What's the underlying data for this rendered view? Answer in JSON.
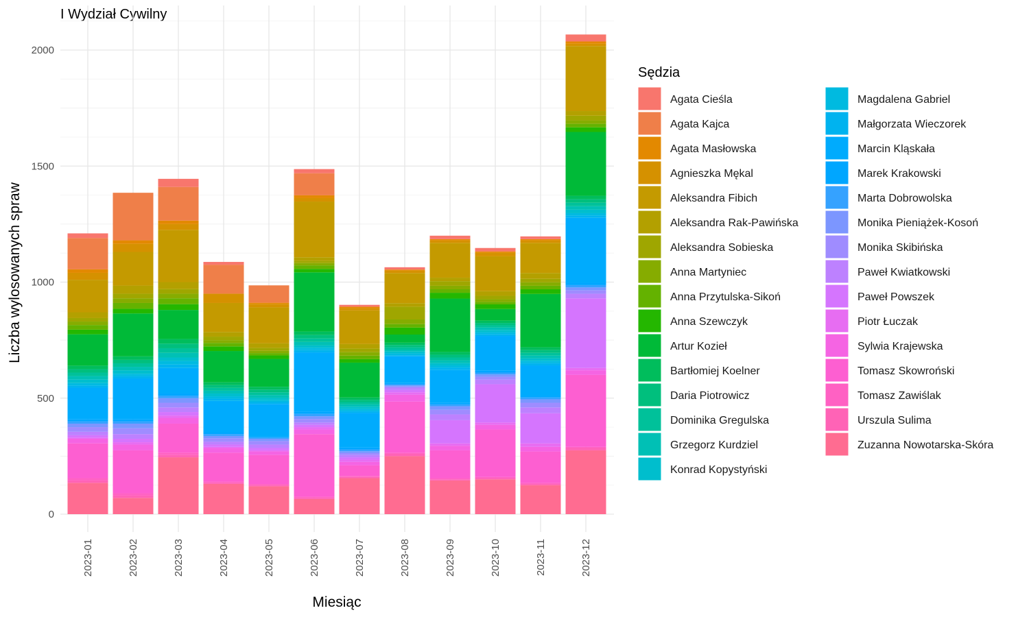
{
  "chart_data": {
    "type": "bar",
    "stacked": true,
    "title": "I Wydział Cywilny",
    "xlabel": "Miesiąc",
    "ylabel": "Liczba wylosowanych spraw",
    "ylim": [
      0,
      2100
    ],
    "yticks": [
      0,
      500,
      1000,
      1500,
      2000
    ],
    "grid": true,
    "legend_title": "Sędzia",
    "legend_position": "right",
    "categories": [
      "2023-01",
      "2023-02",
      "2023-03",
      "2023-04",
      "2023-05",
      "2023-06",
      "2023-07",
      "2023-08",
      "2023-09",
      "2023-10",
      "2023-11",
      "2023-12"
    ],
    "series": [
      {
        "name": "Agata Cieśla",
        "color": "#F8766D",
        "values": [
          20,
          0,
          35,
          12,
          0,
          18,
          8,
          10,
          15,
          15,
          12,
          30
        ]
      },
      {
        "name": "Agata Kajca",
        "color": "#EF7F49",
        "values": [
          135,
          205,
          145,
          125,
          75,
          95,
          0,
          0,
          0,
          0,
          0,
          0
        ]
      },
      {
        "name": "Agata Masłowska",
        "color": "#E38900",
        "values": [
          15,
          15,
          15,
          0,
          5,
          12,
          6,
          5,
          6,
          6,
          6,
          10
        ]
      },
      {
        "name": "Agnieszka Mękal",
        "color": "#D59100",
        "values": [
          30,
          35,
          25,
          40,
          15,
          15,
          10,
          10,
          10,
          15,
          10,
          10
        ]
      },
      {
        "name": "Aleksandra Fibich",
        "color": "#C49A00",
        "values": [
          140,
          145,
          225,
          125,
          155,
          240,
          145,
          130,
          150,
          150,
          130,
          280
        ]
      },
      {
        "name": "Aleksandra Rak-Pawińska",
        "color": "#B3A000",
        "values": [
          25,
          35,
          30,
          20,
          20,
          15,
          20,
          15,
          15,
          20,
          25,
          20
        ]
      },
      {
        "name": "Aleksandra Sobieska",
        "color": "#9FA600",
        "values": [
          15,
          20,
          20,
          15,
          12,
          10,
          15,
          55,
          20,
          15,
          15,
          20
        ]
      },
      {
        "name": "Anna Martyniec",
        "color": "#86AC00",
        "values": [
          15,
          20,
          20,
          12,
          10,
          10,
          15,
          20,
          15,
          12,
          15,
          15
        ]
      },
      {
        "name": "Anna Przytulska-Sikoń",
        "color": "#64B200",
        "values": [
          20,
          25,
          25,
          15,
          10,
          15,
          15,
          15,
          15,
          10,
          15,
          15
        ]
      },
      {
        "name": "Anna Szewczyk",
        "color": "#24B700",
        "values": [
          20,
          20,
          25,
          20,
          15,
          15,
          15,
          30,
          25,
          20,
          20,
          20
        ]
      },
      {
        "name": "Artur Kozieł",
        "color": "#00BA38",
        "values": [
          135,
          185,
          125,
          135,
          120,
          255,
          150,
          35,
          230,
          50,
          230,
          275
        ]
      },
      {
        "name": "Bartłomiej Koelner",
        "color": "#00BD5C",
        "values": [
          15,
          15,
          20,
          12,
          12,
          15,
          10,
          10,
          12,
          10,
          12,
          15
        ]
      },
      {
        "name": "Daria Piotrowicz",
        "color": "#00BF7D",
        "values": [
          15,
          15,
          20,
          12,
          12,
          15,
          10,
          10,
          12,
          10,
          12,
          15
        ]
      },
      {
        "name": "Dominika Gregulska",
        "color": "#00C19A",
        "values": [
          15,
          15,
          20,
          12,
          12,
          15,
          10,
          10,
          12,
          10,
          12,
          15
        ]
      },
      {
        "name": "Grzegorz Kurdziel",
        "color": "#00C0B5",
        "values": [
          15,
          15,
          20,
          12,
          12,
          15,
          10,
          8,
          12,
          10,
          12,
          15
        ]
      },
      {
        "name": "Konrad Kopystyński",
        "color": "#00BECD",
        "values": [
          15,
          15,
          15,
          12,
          10,
          10,
          10,
          8,
          10,
          10,
          10,
          15
        ]
      },
      {
        "name": "Magdalena Gabriel",
        "color": "#00BAE0",
        "values": [
          10,
          10,
          15,
          10,
          8,
          10,
          8,
          8,
          10,
          8,
          10,
          10
        ]
      },
      {
        "name": "Małgorzata Wieczorek",
        "color": "#00B3EF",
        "values": [
          10,
          10,
          15,
          10,
          8,
          10,
          8,
          5,
          10,
          8,
          10,
          10
        ]
      },
      {
        "name": "Marcin Kląskała",
        "color": "#00ABFD",
        "values": [
          135,
          175,
          110,
          135,
          140,
          255,
          150,
          115,
          140,
          150,
          130,
          280
        ]
      },
      {
        "name": "Marek Krakowski",
        "color": "#00A6FF",
        "values": [
          10,
          10,
          10,
          8,
          5,
          10,
          8,
          5,
          8,
          8,
          8,
          10
        ]
      },
      {
        "name": "Marta Dobrowolska",
        "color": "#35A2FF",
        "values": [
          10,
          10,
          10,
          8,
          5,
          10,
          8,
          5,
          8,
          8,
          8,
          10
        ]
      },
      {
        "name": "Monika Pieniążek-Kosoń",
        "color": "#7C96FF",
        "values": [
          15,
          20,
          20,
          10,
          10,
          12,
          8,
          5,
          15,
          10,
          15,
          12
        ]
      },
      {
        "name": "Monika Skibińska",
        "color": "#9F8CFF",
        "values": [
          20,
          25,
          20,
          15,
          15,
          15,
          8,
          5,
          20,
          12,
          20,
          15
        ]
      },
      {
        "name": "Paweł Kwiatkowski",
        "color": "#BD81FF",
        "values": [
          15,
          20,
          20,
          12,
          15,
          10,
          10,
          10,
          25,
          20,
          25,
          20
        ]
      },
      {
        "name": "Paweł Powszek",
        "color": "#D575FE",
        "values": [
          10,
          15,
          15,
          10,
          10,
          10,
          10,
          10,
          100,
          165,
          130,
          300
        ]
      },
      {
        "name": "Piotr Łuczak",
        "color": "#E76DF2",
        "values": [
          5,
          10,
          10,
          5,
          5,
          10,
          10,
          10,
          10,
          10,
          15,
          10
        ]
      },
      {
        "name": "Sylwia Krajewska",
        "color": "#F564E3",
        "values": [
          20,
          25,
          25,
          20,
          15,
          20,
          15,
          30,
          20,
          20,
          20,
          20
        ]
      },
      {
        "name": "Tomasz Skowroński",
        "color": "#FD5FD1",
        "values": [
          150,
          185,
          125,
          125,
          125,
          270,
          45,
          220,
          120,
          205,
          135,
          310
        ]
      },
      {
        "name": "Tomasz Zawiślak",
        "color": "#FF61C3",
        "values": [
          10,
          10,
          10,
          5,
          5,
          5,
          5,
          5,
          5,
          5,
          5,
          5
        ]
      },
      {
        "name": "Urszula Sulima",
        "color": "#FF63B6",
        "values": [
          10,
          10,
          10,
          5,
          5,
          5,
          5,
          10,
          5,
          5,
          5,
          10
        ]
      },
      {
        "name": "Zuzanna Nowotarska-Skóra",
        "color": "#FF6C91",
        "values": [
          135,
          70,
          245,
          130,
          120,
          65,
          155,
          250,
          145,
          150,
          125,
          275
        ]
      }
    ]
  }
}
